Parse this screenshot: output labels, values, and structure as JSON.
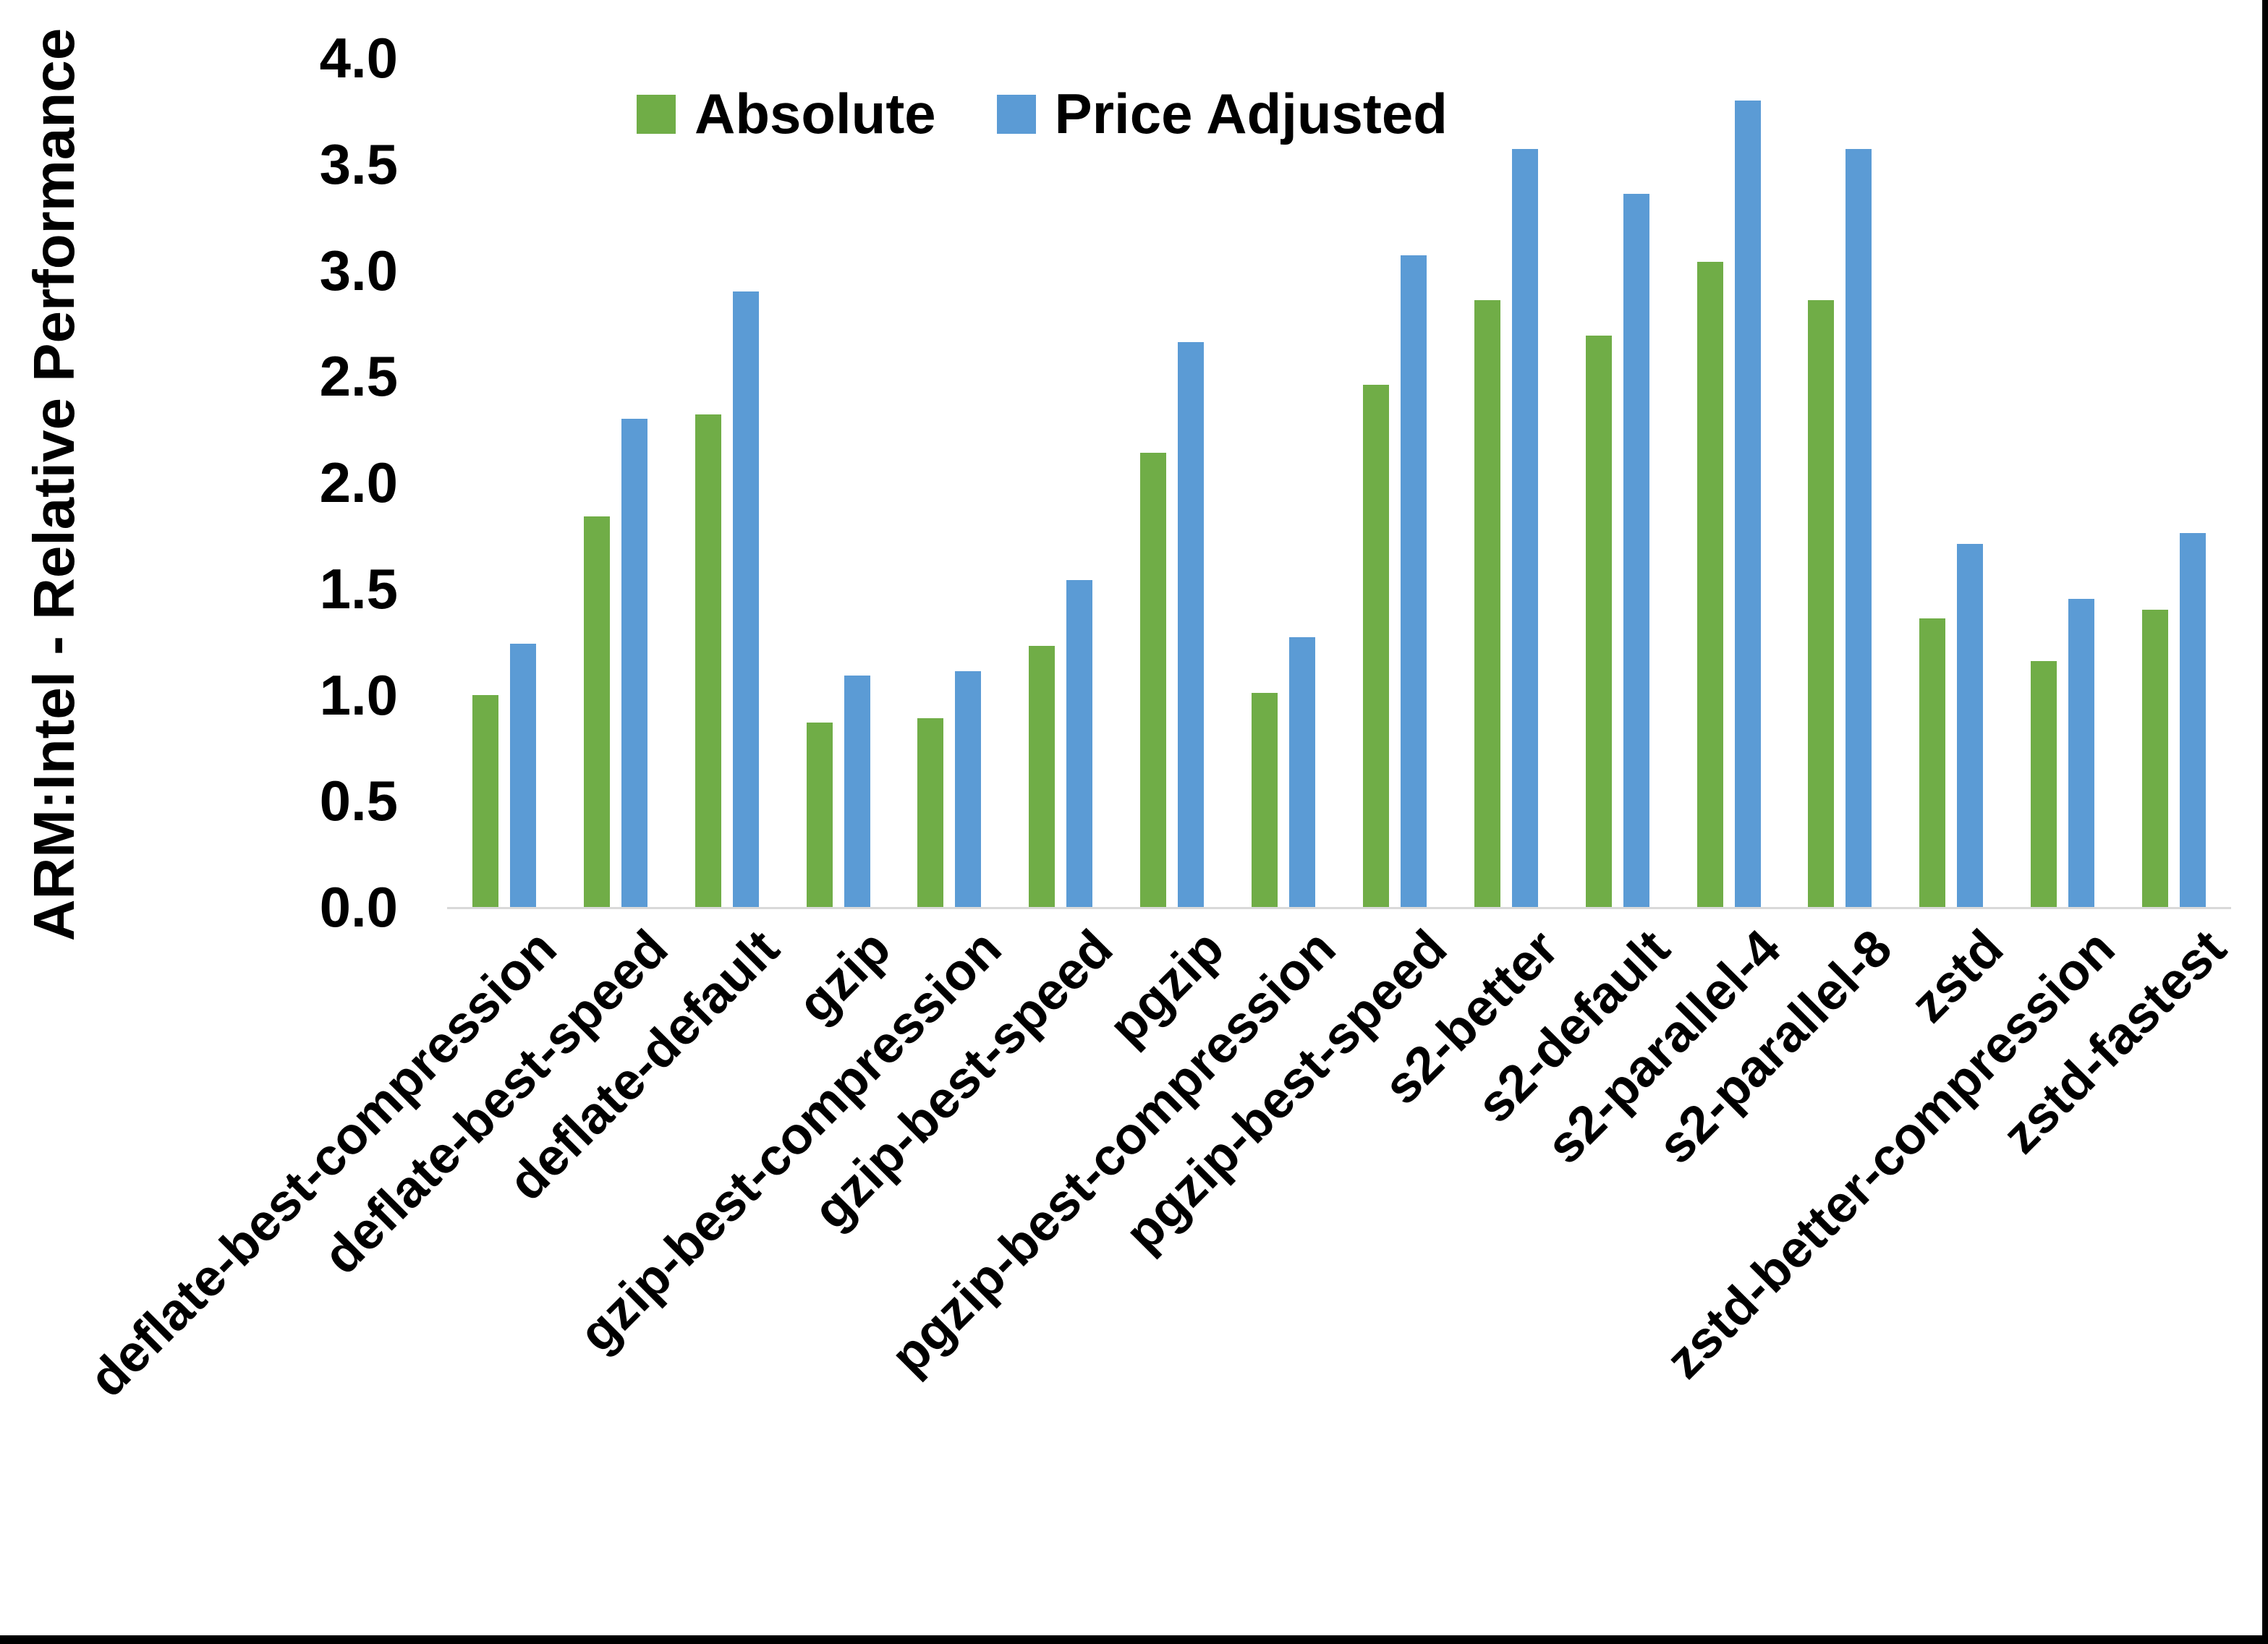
{
  "chart_data": {
    "type": "bar",
    "title": "",
    "ylabel": "ARM:Intel - Relative Performance",
    "xlabel": "",
    "ylim": [
      0,
      4
    ],
    "y_tick_labels": [
      "0.0",
      "0.5",
      "1.0",
      "1.5",
      "2.0",
      "2.5",
      "3.0",
      "3.5",
      "4.0"
    ],
    "grid": false,
    "legend_position": "top-center",
    "axis_line_color": "#D9D9D9",
    "text_color": "#000000",
    "categories": [
      "deflate-best-compression",
      "deflate-best-speed",
      "deflate-default",
      "gzip",
      "gzip-best-compression",
      "gzip-best-speed",
      "pgzip",
      "pgzip-best-compression",
      "pgzip-best-speed",
      "s2-better",
      "s2-default",
      "s2-parallel-4",
      "s2-parallel-8",
      "zstd",
      "zstd-better-compression",
      "zstd-fastest"
    ],
    "series": [
      {
        "name": "Absolute",
        "color": "#70AD47",
        "values": [
          1.0,
          1.84,
          2.32,
          0.87,
          0.89,
          1.23,
          2.14,
          1.01,
          2.46,
          2.86,
          2.69,
          3.04,
          2.86,
          1.36,
          1.16,
          1.4
        ]
      },
      {
        "name": "Price Adjusted",
        "color": "#5B9BD5",
        "values": [
          1.24,
          2.3,
          2.9,
          1.09,
          1.11,
          1.54,
          2.66,
          1.27,
          3.07,
          3.57,
          3.36,
          3.8,
          3.57,
          1.71,
          1.45,
          1.76
        ]
      }
    ]
  },
  "frame": {
    "right_edge_color": "#000000",
    "bottom_edge_color": "#000000"
  }
}
